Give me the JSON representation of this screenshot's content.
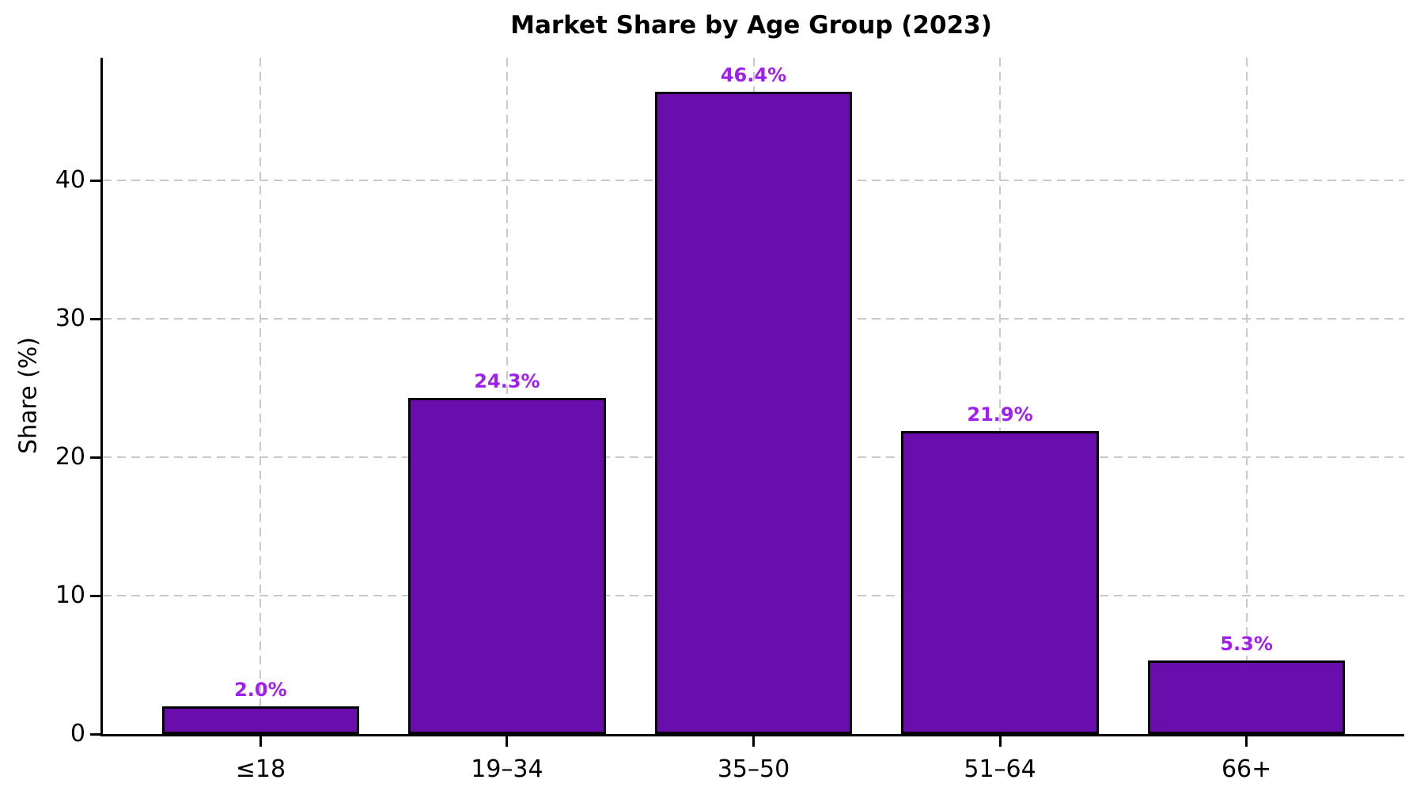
{
  "chart_data": {
    "type": "bar",
    "title": "Market Share by Age Group (2023)",
    "xlabel": "",
    "ylabel": "Share (%)",
    "categories": [
      "≤18",
      "19–34",
      "35–50",
      "51–64",
      "66+"
    ],
    "values": [
      2.0,
      24.3,
      46.4,
      21.9,
      5.3
    ],
    "value_labels": [
      "2.0%",
      "24.3%",
      "46.4%",
      "21.9%",
      "5.3%"
    ],
    "yticks": [
      0,
      10,
      20,
      30,
      40
    ],
    "ylim": [
      0,
      48.86
    ],
    "xlim": [
      -0.64,
      4.64
    ],
    "bar_width": 0.8,
    "legend": "none",
    "grid": "dashed gridlines on both axes",
    "colors": {
      "bar_fill": "#6A0DAD",
      "bar_edge": "#000000",
      "value_label": "#A020F0",
      "gridline": "#C9C9C9",
      "axis": "#000000",
      "text": "#000000",
      "background": "#FFFFFF"
    }
  }
}
